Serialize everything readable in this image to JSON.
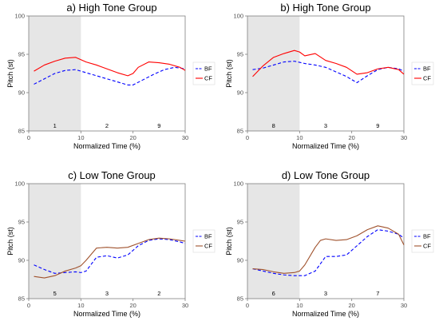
{
  "chart_data": [
    {
      "type": "line",
      "title": "a) High Tone Group",
      "xlabel": "Normalized Time (%)",
      "ylabel": "Pitch (st)",
      "xlim": [
        0,
        30
      ],
      "ylim": [
        85,
        100
      ],
      "x_ticks": [
        0,
        10,
        20,
        30
      ],
      "y_ticks": [
        85,
        90,
        95,
        100
      ],
      "shaded_region": [
        0,
        10
      ],
      "segment_labels": [
        {
          "x": 5,
          "text": "1"
        },
        {
          "x": 15,
          "text": "2"
        },
        {
          "x": 25,
          "text": "9"
        }
      ],
      "legend": [
        "BF",
        "CF"
      ],
      "series": [
        {
          "name": "BF",
          "color": "#0000ff",
          "dash": "dashed",
          "x": [
            1,
            3,
            5,
            7,
            9,
            11,
            13,
            15,
            17,
            19,
            20,
            22,
            24,
            26,
            28,
            30
          ],
          "y": [
            91.1,
            91.8,
            92.5,
            92.9,
            93.0,
            92.6,
            92.2,
            91.8,
            91.4,
            91.0,
            91.0,
            91.7,
            92.4,
            93.0,
            93.3,
            93.1
          ]
        },
        {
          "name": "CF",
          "color": "#ff0000",
          "dash": "solid",
          "x": [
            1,
            3,
            5,
            7,
            9,
            11,
            13,
            15,
            17,
            19,
            20,
            21,
            23,
            25,
            27,
            29,
            30
          ],
          "y": [
            92.8,
            93.6,
            94.1,
            94.5,
            94.6,
            94.0,
            93.6,
            93.1,
            92.6,
            92.2,
            92.5,
            93.3,
            94.0,
            93.9,
            93.7,
            93.3,
            92.9
          ]
        }
      ]
    },
    {
      "type": "line",
      "title": "b) High Tone Group",
      "xlabel": "Normalized Time (%)",
      "ylabel": "Pitch (st)",
      "xlim": [
        0,
        30
      ],
      "ylim": [
        85,
        100
      ],
      "x_ticks": [
        0,
        10,
        20,
        30
      ],
      "y_ticks": [
        85,
        90,
        95,
        100
      ],
      "shaded_region": [
        0,
        10
      ],
      "segment_labels": [
        {
          "x": 5,
          "text": "8"
        },
        {
          "x": 15,
          "text": "3"
        },
        {
          "x": 25,
          "text": "9"
        }
      ],
      "legend": [
        "BF",
        "CF"
      ],
      "series": [
        {
          "name": "BF",
          "color": "#0000ff",
          "dash": "dashed",
          "x": [
            1,
            3,
            5,
            7,
            9,
            11,
            13,
            15,
            17,
            19,
            21,
            23,
            25,
            27,
            29,
            30
          ],
          "y": [
            93.0,
            93.2,
            93.6,
            94.0,
            94.1,
            93.8,
            93.6,
            93.3,
            92.7,
            92.1,
            91.3,
            92.2,
            93.0,
            93.3,
            93.1,
            92.8
          ]
        },
        {
          "name": "CF",
          "color": "#ff0000",
          "dash": "solid",
          "x": [
            1,
            3,
            5,
            7,
            9,
            10,
            11,
            13,
            15,
            17,
            19,
            21,
            23,
            25,
            27,
            29,
            30
          ],
          "y": [
            92.1,
            93.5,
            94.6,
            95.1,
            95.5,
            95.3,
            94.8,
            95.1,
            94.2,
            93.8,
            93.3,
            92.4,
            92.6,
            93.1,
            93.3,
            93.0,
            92.4
          ]
        }
      ]
    },
    {
      "type": "line",
      "title": "c) Low Tone Group",
      "xlabel": "Normalized Time (%)",
      "ylabel": "Pitch (st)",
      "xlim": [
        0,
        30
      ],
      "ylim": [
        85,
        100
      ],
      "x_ticks": [
        0,
        10,
        20,
        30
      ],
      "y_ticks": [
        85,
        90,
        95,
        100
      ],
      "shaded_region": [
        0,
        10
      ],
      "segment_labels": [
        {
          "x": 5,
          "text": "5"
        },
        {
          "x": 15,
          "text": "3"
        },
        {
          "x": 25,
          "text": "2"
        }
      ],
      "legend": [
        "BF",
        "CF"
      ],
      "series": [
        {
          "name": "BF",
          "color": "#0000ff",
          "dash": "dashed",
          "x": [
            1,
            3,
            5,
            7,
            9,
            10,
            11,
            13,
            15,
            17,
            19,
            21,
            23,
            25,
            27,
            29,
            30
          ],
          "y": [
            89.4,
            88.8,
            88.3,
            88.4,
            88.5,
            88.4,
            88.6,
            90.4,
            90.6,
            90.3,
            90.7,
            91.9,
            92.6,
            92.8,
            92.7,
            92.4,
            92.2
          ]
        },
        {
          "name": "CF",
          "color": "#a0522d",
          "dash": "solid",
          "x": [
            1,
            3,
            5,
            7,
            9,
            10,
            11,
            13,
            15,
            17,
            19,
            21,
            23,
            25,
            27,
            29,
            30
          ],
          "y": [
            87.9,
            87.7,
            88.0,
            88.6,
            89.0,
            89.3,
            90.0,
            91.6,
            91.7,
            91.6,
            91.7,
            92.2,
            92.7,
            92.9,
            92.8,
            92.6,
            92.5
          ]
        }
      ]
    },
    {
      "type": "line",
      "title": "d) Low Tone Group",
      "xlabel": "Normalized Time (%)",
      "ylabel": "Pitch (st)",
      "xlim": [
        0,
        30
      ],
      "ylim": [
        85,
        100
      ],
      "x_ticks": [
        0,
        10,
        20,
        30
      ],
      "y_ticks": [
        85,
        90,
        95,
        100
      ],
      "shaded_region": [
        0,
        10
      ],
      "segment_labels": [
        {
          "x": 5,
          "text": "6"
        },
        {
          "x": 15,
          "text": "3"
        },
        {
          "x": 25,
          "text": "7"
        }
      ],
      "legend": [
        "BF",
        "CF"
      ],
      "series": [
        {
          "name": "BF",
          "color": "#0000ff",
          "dash": "dashed",
          "x": [
            1,
            3,
            5,
            7,
            9,
            11,
            13,
            15,
            17,
            19,
            21,
            23,
            25,
            27,
            29,
            30
          ],
          "y": [
            88.9,
            88.6,
            88.3,
            88.1,
            88.0,
            88.0,
            88.6,
            90.5,
            90.5,
            90.7,
            91.9,
            93.1,
            94.0,
            93.8,
            93.4,
            92.9
          ]
        },
        {
          "name": "CF",
          "color": "#a0522d",
          "dash": "solid",
          "x": [
            1,
            3,
            5,
            7,
            9,
            10,
            11,
            13,
            14,
            15,
            17,
            19,
            21,
            23,
            25,
            27,
            29,
            30
          ],
          "y": [
            88.9,
            88.8,
            88.5,
            88.3,
            88.4,
            88.6,
            89.4,
            91.7,
            92.6,
            92.8,
            92.6,
            92.7,
            93.2,
            94.0,
            94.5,
            94.2,
            93.4,
            92.0
          ]
        }
      ]
    }
  ]
}
